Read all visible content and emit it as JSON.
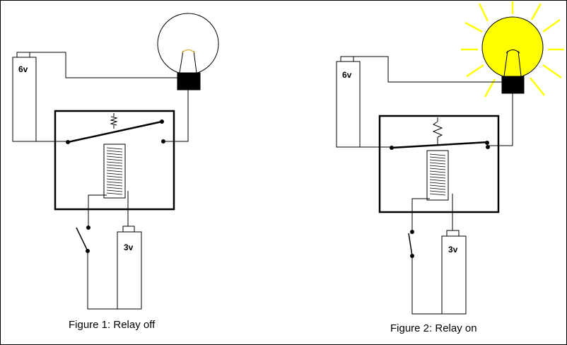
{
  "figures": [
    {
      "id": "relay-off",
      "caption": "Figure 1: Relay off",
      "main_battery_label": "6v",
      "coil_battery_label": "3v",
      "bulb_lit": false,
      "switch_closed": false,
      "relay_contact_closed": false
    },
    {
      "id": "relay-on",
      "caption": "Figure 2: Relay on",
      "main_battery_label": "6v",
      "coil_battery_label": "3v",
      "bulb_lit": true,
      "switch_closed": true,
      "relay_contact_closed": true
    }
  ],
  "colors": {
    "line": "#000000",
    "bulb_glow": "#ffff00",
    "bulb_filament_off": "#d8b84a",
    "background": "#ffffff"
  }
}
